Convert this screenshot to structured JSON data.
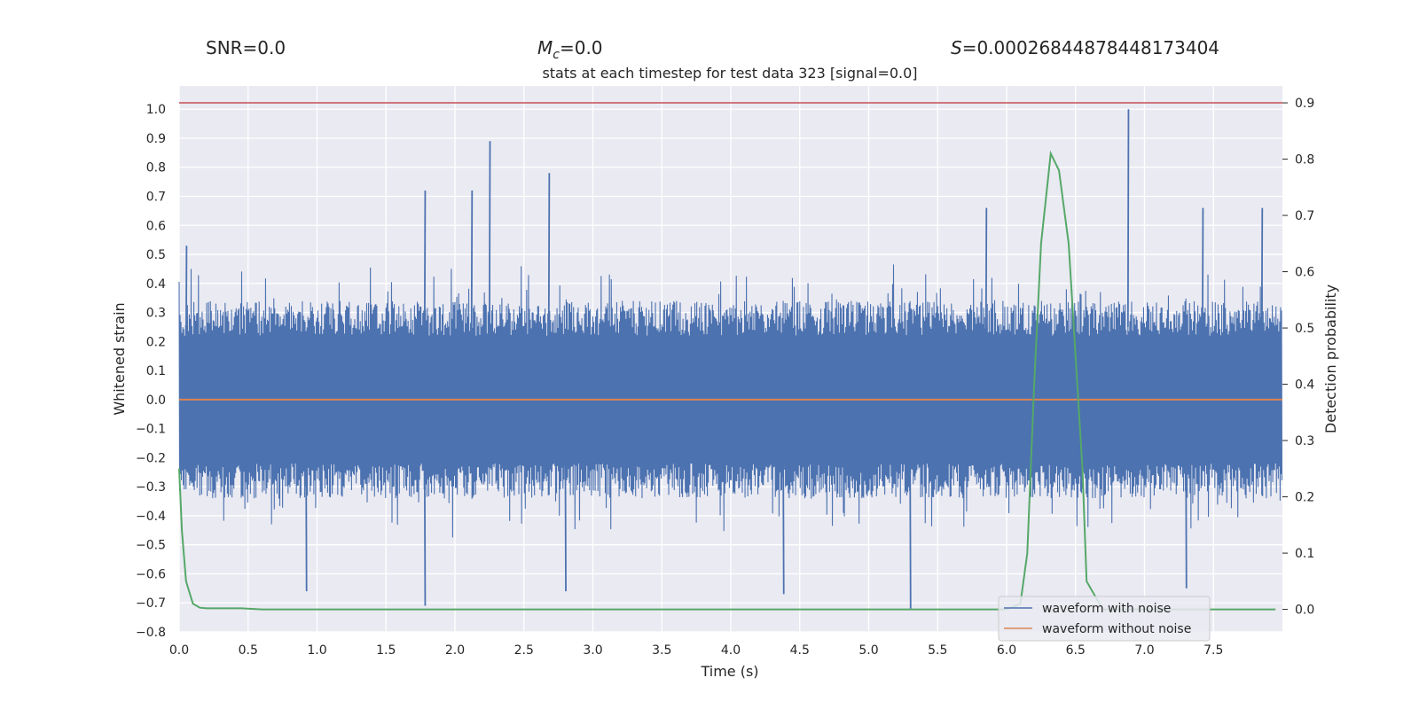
{
  "header": {
    "snr_label": "SNR=0.0",
    "mc_symbol": "M",
    "mc_sub": "c",
    "mc_value": "=0.0",
    "s_symbol": "S",
    "s_value": "=0.00026844878448173404"
  },
  "chart_data": {
    "type": "line",
    "title": "stats at each timestep for test data 323 [signal=0.0]",
    "xlabel": "Time (s)",
    "ylabel": "Whitened strain",
    "y2label": "Detection probability",
    "xlim": [
      0,
      8.0
    ],
    "ylim": [
      -0.8,
      1.08
    ],
    "y2lim": [
      -0.04,
      0.93
    ],
    "xticks": [
      0.0,
      0.5,
      1.0,
      1.5,
      2.0,
      2.5,
      3.0,
      3.5,
      4.0,
      4.5,
      5.0,
      5.5,
      6.0,
      6.5,
      7.0,
      7.5
    ],
    "xtick_labels": [
      "0.0",
      "0.5",
      "1.0",
      "1.5",
      "2.0",
      "2.5",
      "3.0",
      "3.5",
      "4.0",
      "4.5",
      "5.0",
      "5.5",
      "6.0",
      "6.5",
      "7.0",
      "7.5"
    ],
    "yticks": [
      1.0,
      0.9,
      0.8,
      0.7,
      0.6,
      0.5,
      0.4,
      0.3,
      0.2,
      0.1,
      0.0,
      -0.1,
      -0.2,
      -0.3,
      -0.4,
      -0.5,
      -0.6,
      -0.7,
      -0.8
    ],
    "ytick_labels": [
      "1.0",
      "0.9",
      "0.8",
      "0.7",
      "0.6",
      "0.5",
      "0.4",
      "0.3",
      "0.2",
      "0.1",
      "0.0",
      "−0.1",
      "−0.2",
      "−0.3",
      "−0.4",
      "−0.5",
      "−0.6",
      "−0.7",
      "−0.8"
    ],
    "y2ticks": [
      0.9,
      0.8,
      0.7,
      0.6,
      0.5,
      0.4,
      0.3,
      0.2,
      0.1,
      0.0
    ],
    "y2tick_labels": [
      "0.9",
      "0.8",
      "0.7",
      "0.6",
      "0.5",
      "0.4",
      "0.3",
      "0.2",
      "0.1",
      "0.0"
    ],
    "threshold_line": {
      "y2": 0.9,
      "color": "#c44e52"
    },
    "series": [
      {
        "name": "waveform with noise",
        "axis": "left",
        "color": "#4c72b0",
        "style": "noise",
        "envelope_upper_typical": 0.35,
        "envelope_lower_typical": -0.35,
        "peaks": [
          {
            "x": 0.05,
            "y": 0.53
          },
          {
            "x": 0.92,
            "y": -0.66
          },
          {
            "x": 1.78,
            "y": 0.72
          },
          {
            "x": 1.78,
            "y": -0.71
          },
          {
            "x": 2.12,
            "y": 0.72
          },
          {
            "x": 2.25,
            "y": 0.89
          },
          {
            "x": 2.68,
            "y": 0.78
          },
          {
            "x": 2.8,
            "y": -0.66
          },
          {
            "x": 4.38,
            "y": -0.67
          },
          {
            "x": 5.3,
            "y": -0.72
          },
          {
            "x": 5.85,
            "y": 0.66
          },
          {
            "x": 6.88,
            "y": 1.0
          },
          {
            "x": 7.42,
            "y": 0.66
          },
          {
            "x": 7.85,
            "y": 0.66
          },
          {
            "x": 7.3,
            "y": -0.65
          }
        ]
      },
      {
        "name": "waveform without noise",
        "axis": "left",
        "color": "#dd8452",
        "x": [
          0.0,
          8.0
        ],
        "y": [
          0.0,
          0.0
        ]
      },
      {
        "name": "detection probability",
        "axis": "right",
        "color": "#55a868",
        "x": [
          0.0,
          0.02,
          0.05,
          0.1,
          0.15,
          0.2,
          0.3,
          0.45,
          0.6,
          1.0,
          2.0,
          3.0,
          4.0,
          5.0,
          5.5,
          6.0,
          6.1,
          6.15,
          6.2,
          6.25,
          6.32,
          6.38,
          6.45,
          6.5,
          6.55,
          6.58,
          6.65,
          6.7,
          6.8,
          7.0,
          7.5,
          7.95
        ],
        "y": [
          0.25,
          0.14,
          0.05,
          0.01,
          0.003,
          0.002,
          0.002,
          0.002,
          0.0,
          0.0,
          0.0,
          0.0,
          0.0,
          0.0,
          0.0,
          0.0,
          0.01,
          0.1,
          0.4,
          0.65,
          0.81,
          0.78,
          0.65,
          0.45,
          0.25,
          0.05,
          0.02,
          0.0,
          0.0,
          0.0,
          0.0,
          0.0
        ]
      }
    ],
    "legend": {
      "position": "lower-right",
      "entries": [
        {
          "label": "waveform with noise",
          "color": "#4c72b0"
        },
        {
          "label": "waveform without noise",
          "color": "#dd8452"
        }
      ]
    }
  }
}
